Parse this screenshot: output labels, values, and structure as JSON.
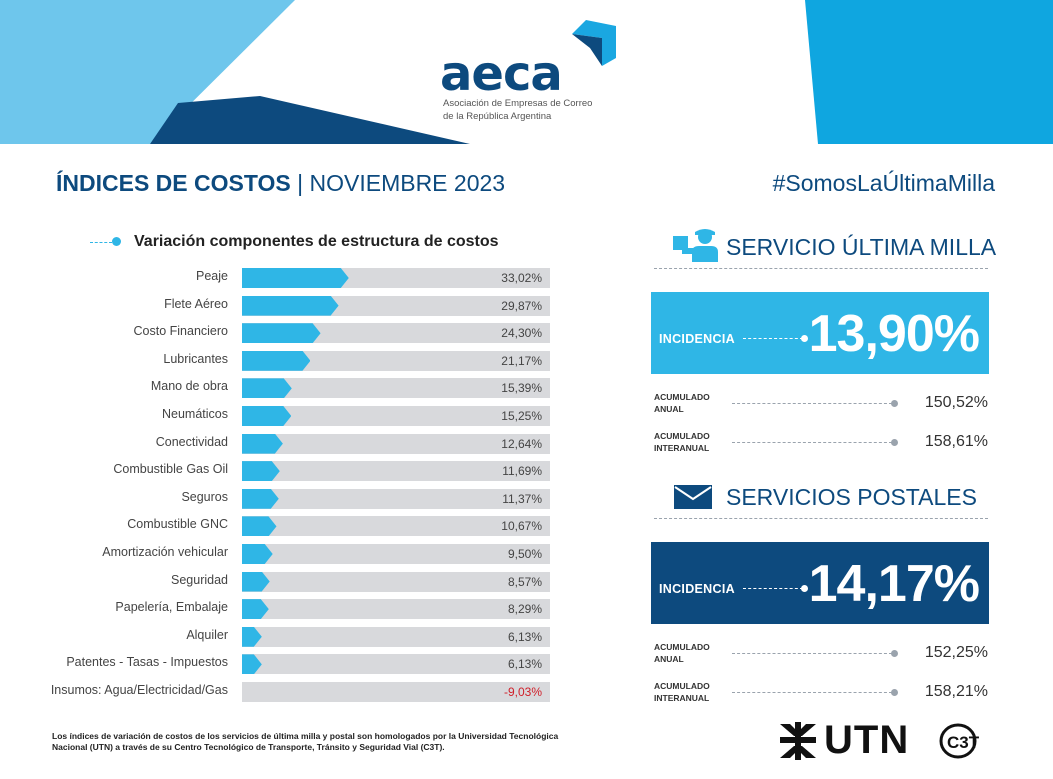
{
  "org": {
    "name": "aeca",
    "subtitle_line1": "Asociación de Empresas de Correo",
    "subtitle_line2": "de la República Argentina"
  },
  "header": {
    "title_bold": "ÍNDICES DE COSTOS",
    "separator": "|",
    "date": "NOVIEMBRE 2023",
    "hashtag": "#SomosLaÚltimaMilla"
  },
  "colors": {
    "navy": "#0d4a7e",
    "cyan": "#2fb6e6",
    "bar_track": "#d8d9dc",
    "negative": "#d0202a"
  },
  "chart_data": {
    "type": "bar",
    "title": "Variación componentes de estructura de costos",
    "orientation": "horizontal",
    "categories": [
      "Peaje",
      "Flete Aéreo",
      "Costo Financiero",
      "Lubricantes",
      "Mano de obra",
      "Neumáticos",
      "Conectividad",
      "Combustible Gas Oil",
      "Seguros",
      "Combustible GNC",
      "Amortización vehicular",
      "Seguridad",
      "Papelería, Embalaje",
      "Alquiler",
      "Patentes - Tasas - Impuestos",
      "Insumos: Agua/Electricidad/Gas"
    ],
    "values": [
      33.02,
      29.87,
      24.3,
      21.17,
      15.39,
      15.25,
      12.64,
      11.69,
      11.37,
      10.67,
      9.5,
      8.57,
      8.29,
      6.13,
      6.13,
      -9.03
    ],
    "value_labels": [
      "33,02%",
      "29,87%",
      "24,30%",
      "21,17%",
      "15,39%",
      "15,25%",
      "12,64%",
      "11,69%",
      "11,37%",
      "10,67%",
      "9,50%",
      "8,57%",
      "8,29%",
      "6,13%",
      "6,13%",
      "-9,03%"
    ]
  },
  "services": [
    {
      "title": "SERVICIO ÚLTIMA MILLA",
      "icon": "delivery-person-icon",
      "incidence_label": "INCIDENCIA",
      "incidence_value": "13,90%",
      "acc1_line1": "ACUMULADO",
      "acc1_line2": "ANUAL",
      "acc1_value": "150,52%",
      "acc2_line1": "ACUMULADO",
      "acc2_line2": "INTERANUAL",
      "acc2_value": "158,61%"
    },
    {
      "title": "SERVICIOS POSTALES",
      "icon": "envelope-icon",
      "incidence_label": "INCIDENCIA",
      "incidence_value": "14,17%",
      "acc1_line1": "ACUMULADO",
      "acc1_line2": "ANUAL",
      "acc1_value": "152,25%",
      "acc2_line1": "ACUMULADO",
      "acc2_line2": "INTERANUAL",
      "acc2_value": "158,21%"
    }
  ],
  "footnote": "Los índices de variación de costos de los servicios de última milla y postal son homologados por la Universidad Tecnológica Nacional (UTN) a través de su Centro Tecnológico de Transporte, Tránsito y Seguridad Vial (C3T).",
  "partners": {
    "utn": "UTN",
    "c3t": "C3T"
  }
}
